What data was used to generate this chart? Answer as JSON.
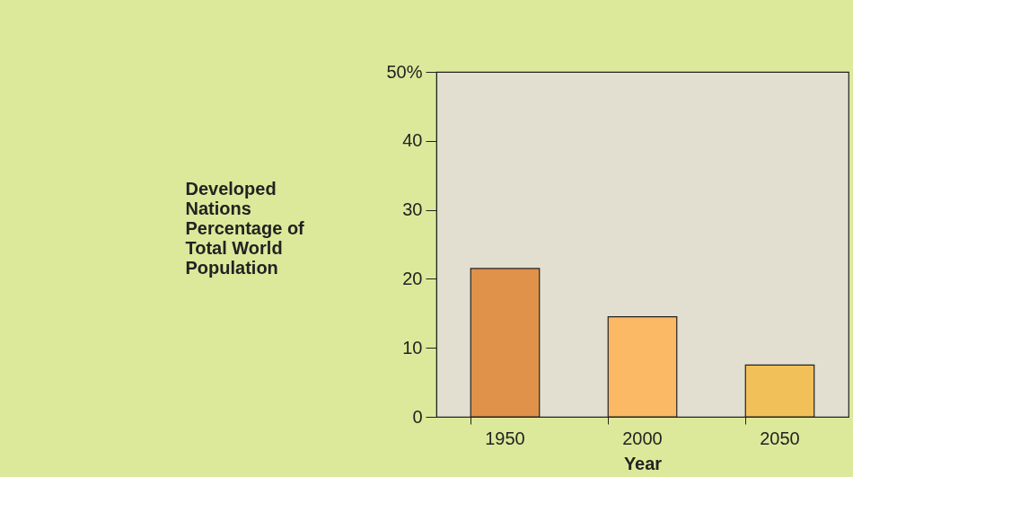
{
  "chart_data": {
    "type": "bar",
    "xlabel": "Year",
    "ylabel": "Developed Nations Percentage of Total World Population",
    "categories": [
      "1950",
      "2000",
      "2050"
    ],
    "values": [
      21.5,
      14.5,
      7.5
    ],
    "colors": [
      "#e0914a",
      "#fbb865",
      "#f2c058"
    ],
    "ylim": [
      0,
      50
    ],
    "yticks": [
      0,
      10,
      20,
      30,
      40,
      {
        "value": 50,
        "label": "50%"
      }
    ],
    "grid": false
  }
}
